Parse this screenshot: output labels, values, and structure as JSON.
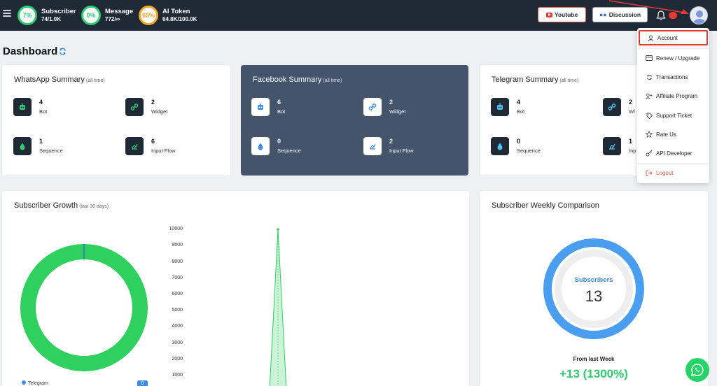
{
  "header": {
    "stats": [
      {
        "pct": "7%",
        "title": "Subscriber",
        "value": "74/1.0K"
      },
      {
        "pct": "0%",
        "title": "Message",
        "value": "772/∞"
      },
      {
        "pct": "65%",
        "title": "AI Token",
        "value": "64.8K/100.0K"
      }
    ],
    "youtube_label": "Youtube",
    "discussion_label": "Discussion"
  },
  "page": {
    "title": "Dashboard"
  },
  "summaries": [
    {
      "title": "WhatsApp Summary",
      "sub": "(all time)",
      "items": [
        {
          "num": "4",
          "label": "Bot"
        },
        {
          "num": "2",
          "label": "Widget"
        },
        {
          "num": "1",
          "label": "Sequence"
        },
        {
          "num": "6",
          "label": "Input Flow"
        }
      ]
    },
    {
      "title": "Facebook Summary",
      "sub": "(all time)",
      "items": [
        {
          "num": "6",
          "label": "Bot"
        },
        {
          "num": "2",
          "label": "Widget"
        },
        {
          "num": "0",
          "label": "Sequence"
        },
        {
          "num": "2",
          "label": "Input Flow"
        }
      ]
    },
    {
      "title": "Telegram Summary",
      "sub": "(all time)",
      "items": [
        {
          "num": "4",
          "label": "Bot"
        },
        {
          "num": "2",
          "label": "Wi"
        },
        {
          "num": "0",
          "label": "Sequence"
        },
        {
          "num": "1",
          "label": "Inp"
        }
      ]
    }
  ],
  "growth": {
    "title": "Subscriber Growth",
    "sub": "(last 30 days)",
    "legend": {
      "label": "Telegram",
      "count": "0"
    },
    "yticks": [
      "10000",
      "9000",
      "8000",
      "7000",
      "6000",
      "5000",
      "4000",
      "3000",
      "2000",
      "1000"
    ]
  },
  "weekly": {
    "title": "Subscriber Weekly Comparison",
    "ring_label": "Subscribers",
    "ring_value": "13",
    "from_label": "From last Week",
    "change": "+13 (1300%)"
  },
  "menu": {
    "items": [
      "Account",
      "Renew / Upgrade",
      "Transactions",
      "Affiliate Program",
      "Support Ticket",
      "Rate Us",
      "API Developer",
      "Logout"
    ]
  },
  "colors": {
    "topbar": "#1f2a36",
    "green": "#2ecc71",
    "accent_red": "#e53935",
    "ring_blue": "#4a9ef0"
  }
}
